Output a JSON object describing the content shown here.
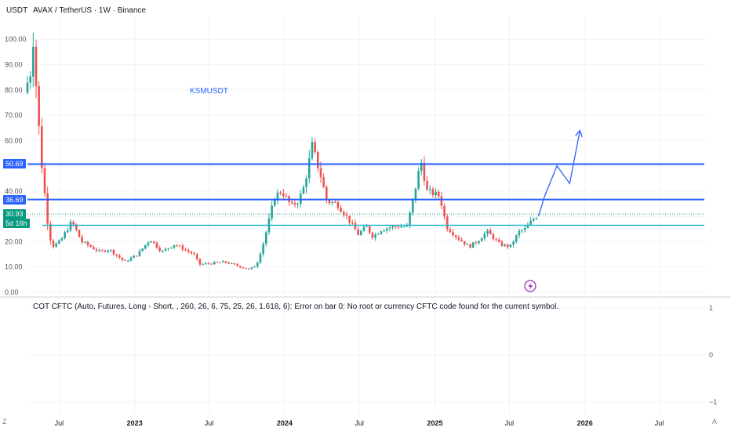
{
  "header": {
    "quote_currency": "USDT",
    "symbol_title": "AVAX / TetherUS · 1W · Binance"
  },
  "annotation_text": "KSMUSDT",
  "price_tags": {
    "resistance_high": "50.69",
    "resistance_low": "36.69",
    "last_price": "30.93",
    "countdown": "5d 16h"
  },
  "indicator": {
    "error_text": "COT CFTC (Auto, Futures, Long - Short, , 260, 26, 6, 75, 25, 26, 1.618, 6): Error on bar 0: No root or currency CFTC code found for the current symbol.",
    "y_ticks": [
      "1",
      "0",
      "−1"
    ]
  },
  "footer": {
    "timezone_marker": "Z",
    "auto_label": "A"
  },
  "colors": {
    "up": "#26a69a",
    "down": "#ef5350",
    "resistance_line": "#2962ff",
    "support_line": "#22b8cf",
    "projection": "#2962ff",
    "last_price_tag": "#089981",
    "lightning_icon": "#9c27b0"
  },
  "chart_data": {
    "type": "candlestick",
    "timeframe": "1W",
    "y_axis": {
      "ticks": [
        0,
        10,
        20,
        30,
        40,
        50,
        60,
        70,
        80,
        90,
        100
      ],
      "tick_labels": [
        "0.00",
        "10.00",
        "20.00",
        "30.00",
        "40.00",
        "50.00",
        "60.00",
        "70.00",
        "80.00",
        "90.00",
        "100.00"
      ],
      "ylim": [
        0,
        107
      ]
    },
    "x_axis": {
      "range": [
        "2022-04-15",
        "2026-10-15"
      ],
      "ticks": [
        {
          "date": "2022-07-01",
          "label": "Jul",
          "bold": false
        },
        {
          "date": "2023-01-01",
          "label": "2023",
          "bold": true
        },
        {
          "date": "2023-07-01",
          "label": "Jul",
          "bold": false
        },
        {
          "date": "2024-01-01",
          "label": "2024",
          "bold": true
        },
        {
          "date": "2024-07-01",
          "label": "Jul",
          "bold": false
        },
        {
          "date": "2025-01-01",
          "label": "2025",
          "bold": true
        },
        {
          "date": "2025-07-01",
          "label": "Jul",
          "bold": false
        },
        {
          "date": "2026-01-01",
          "label": "2026",
          "bold": true
        },
        {
          "date": "2026-07-01",
          "label": "Jul",
          "bold": false
        }
      ]
    },
    "anchors": [
      [
        "2022-04-15",
        79
      ],
      [
        "2022-05-01",
        88
      ],
      [
        "2022-05-06",
        100
      ],
      [
        "2022-05-13",
        82
      ],
      [
        "2022-05-20",
        65
      ],
      [
        "2022-05-27",
        50
      ],
      [
        "2022-06-10",
        28
      ],
      [
        "2022-06-20",
        18
      ],
      [
        "2022-07-10",
        20
      ],
      [
        "2022-08-08",
        28
      ],
      [
        "2022-09-01",
        20
      ],
      [
        "2022-10-15",
        16
      ],
      [
        "2022-11-07",
        17
      ],
      [
        "2022-12-15",
        12
      ],
      [
        "2023-01-15",
        15
      ],
      [
        "2023-02-15",
        21
      ],
      [
        "2023-03-15",
        16
      ],
      [
        "2023-04-15",
        19
      ],
      [
        "2023-06-01",
        15
      ],
      [
        "2023-06-15",
        11
      ],
      [
        "2023-08-15",
        12
      ],
      [
        "2023-10-15",
        9
      ],
      [
        "2023-11-01",
        11
      ],
      [
        "2023-11-20",
        21
      ],
      [
        "2023-12-15",
        38
      ],
      [
        "2024-01-01",
        40
      ],
      [
        "2024-01-25",
        34
      ],
      [
        "2024-02-10",
        36
      ],
      [
        "2024-02-25",
        42
      ],
      [
        "2024-03-15",
        58
      ],
      [
        "2024-04-05",
        46
      ],
      [
        "2024-04-20",
        36
      ],
      [
        "2024-05-15",
        35
      ],
      [
        "2024-06-15",
        28
      ],
      [
        "2024-07-05",
        23
      ],
      [
        "2024-07-25",
        26
      ],
      [
        "2024-08-10",
        22
      ],
      [
        "2024-09-01",
        25
      ],
      [
        "2024-10-01",
        26
      ],
      [
        "2024-11-01",
        26
      ],
      [
        "2024-11-15",
        36
      ],
      [
        "2024-12-05",
        52
      ],
      [
        "2024-12-20",
        40
      ],
      [
        "2025-01-20",
        38
      ],
      [
        "2025-02-05",
        26
      ],
      [
        "2025-03-01",
        22
      ],
      [
        "2025-04-01",
        18
      ],
      [
        "2025-04-20",
        20
      ],
      [
        "2025-05-15",
        24
      ],
      [
        "2025-06-15",
        19
      ],
      [
        "2025-07-10",
        18
      ],
      [
        "2025-08-01",
        24
      ],
      [
        "2025-08-15",
        25
      ],
      [
        "2025-09-10",
        30
      ]
    ],
    "levels": {
      "resistance_high": 50.69,
      "resistance_low": 36.69,
      "support": 26.5,
      "last_price": 30.93
    },
    "projection_path": [
      [
        "2025-09-10",
        30
      ],
      [
        "2025-09-25",
        38
      ],
      [
        "2025-10-25",
        50
      ],
      [
        "2025-11-25",
        43
      ],
      [
        "2025-12-20",
        64
      ]
    ],
    "indicator_pane": {
      "ylim": [
        -1,
        1
      ]
    }
  }
}
